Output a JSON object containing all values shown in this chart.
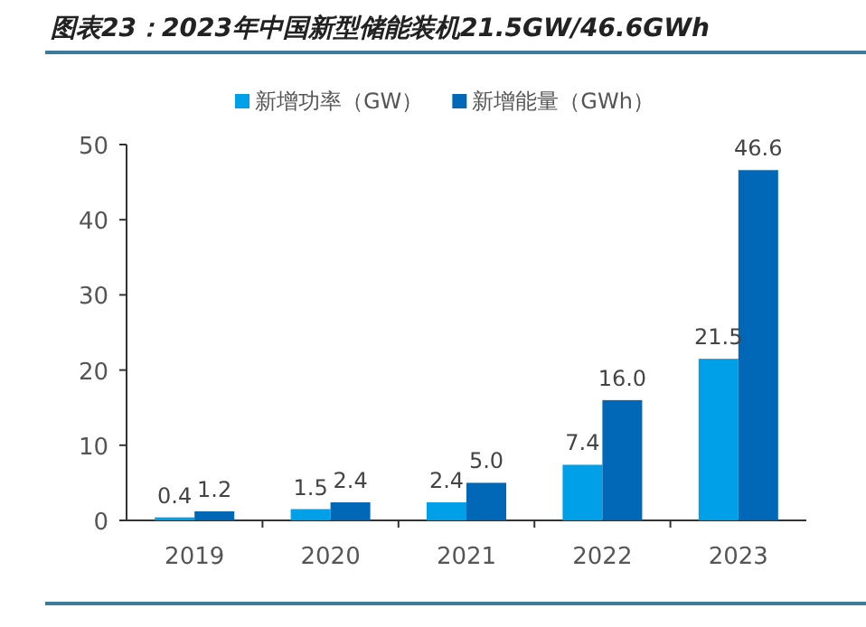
{
  "chart_data": {
    "type": "bar",
    "title": "图表23：2023年中国新型储能装机21.5GW/46.6GWh",
    "categories": [
      "2019",
      "2020",
      "2021",
      "2022",
      "2023"
    ],
    "series": [
      {
        "name": "新增功率（GW）",
        "color": "#00a0e9",
        "values": [
          0.4,
          1.5,
          2.4,
          7.4,
          21.5
        ],
        "value_labels": [
          "0.4",
          "1.5",
          "2.4",
          "7.4",
          "21.5"
        ]
      },
      {
        "name": "新增能量（GWh）",
        "color": "#0068b7",
        "values": [
          1.2,
          2.4,
          5.0,
          16.0,
          46.6
        ],
        "value_labels": [
          "1.2",
          "2.4",
          "5.0",
          "16.0",
          "46.6"
        ]
      }
    ],
    "ylim": [
      0,
      50
    ],
    "yticks": [
      0,
      10,
      20,
      30,
      40,
      50
    ],
    "grid": false,
    "legend": "top"
  }
}
